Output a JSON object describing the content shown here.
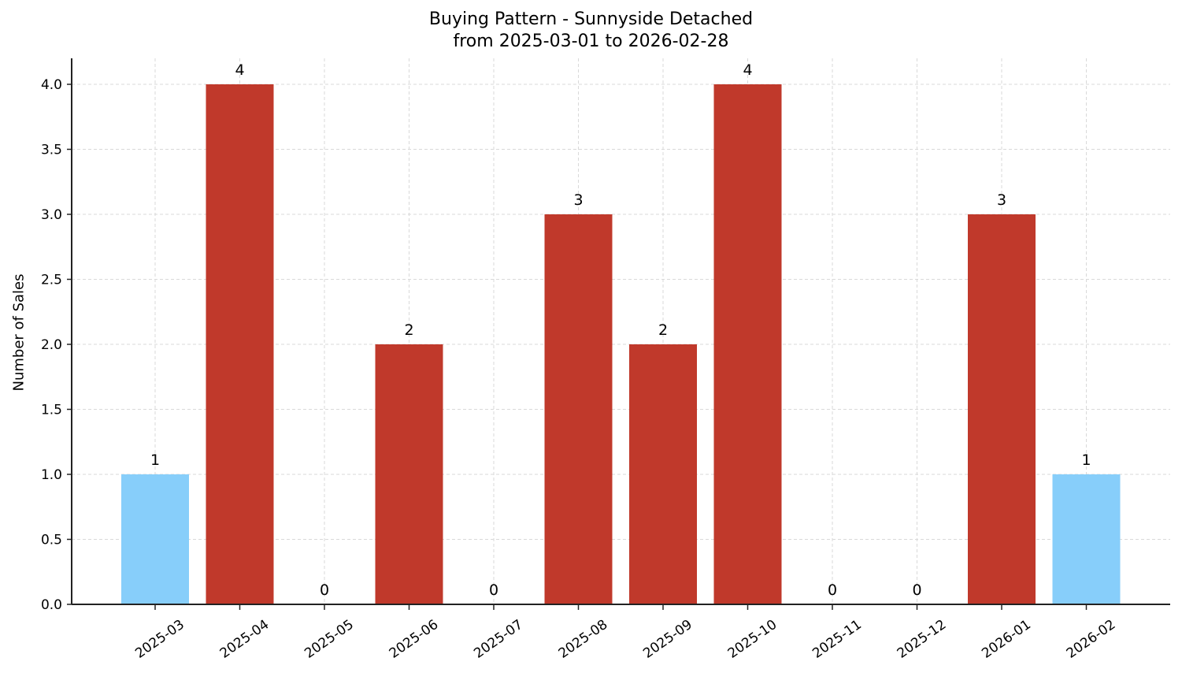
{
  "chart_data": {
    "type": "bar",
    "title": "Buying Pattern - Sunnyside Detached",
    "subtitle": "from 2025-03-01 to 2026-02-28",
    "xlabel": "",
    "ylabel": "Number of Sales",
    "categories": [
      "2025-03",
      "2025-04",
      "2025-05",
      "2025-06",
      "2025-07",
      "2025-08",
      "2025-09",
      "2025-10",
      "2025-11",
      "2025-12",
      "2026-01",
      "2026-02"
    ],
    "values": [
      1,
      4,
      0,
      2,
      0,
      3,
      2,
      4,
      0,
      0,
      3,
      1
    ],
    "bar_colors": [
      "#87CEFA",
      "#C0392B",
      "#C0392B",
      "#C0392B",
      "#C0392B",
      "#C0392B",
      "#C0392B",
      "#C0392B",
      "#C0392B",
      "#C0392B",
      "#C0392B",
      "#87CEFA"
    ],
    "ylim": [
      0,
      4.2
    ],
    "yticks": [
      "0.0",
      "0.5",
      "1.0",
      "1.5",
      "2.0",
      "2.5",
      "3.0",
      "3.5",
      "4.0"
    ],
    "grid": true,
    "data_labels": true,
    "legend": null
  },
  "colors": {
    "low": "#87CEFA",
    "high": "#C0392B",
    "grid": "#d9d9d9",
    "axis": "#222222"
  }
}
